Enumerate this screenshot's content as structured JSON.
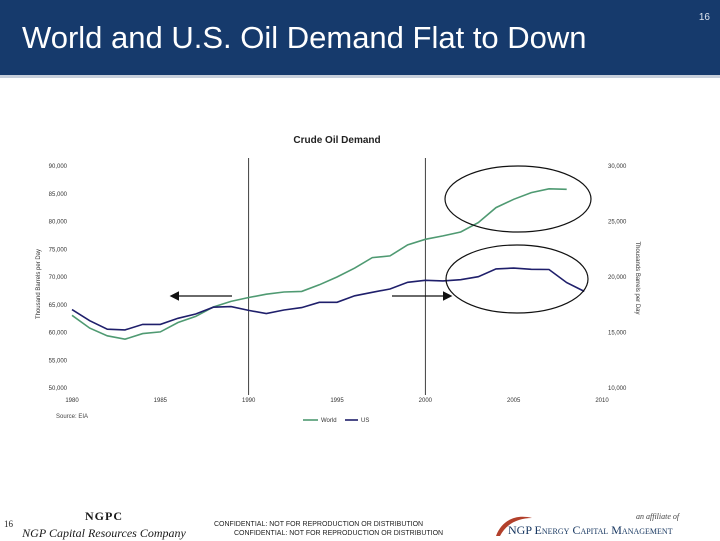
{
  "slide": {
    "title": "World and U.S. Oil Demand Flat to Down",
    "page_number_top": "16",
    "page_number_bottom": "16"
  },
  "footer": {
    "brand_line1": "NGPC",
    "brand_line2": "NGP Capital Resources Company",
    "confidential_1": "CONFIDENTIAL: NOT FOR REPRODUCTION OR DISTRIBUTION",
    "confidential_2": "CONFIDENTIAL: NOT FOR REPRODUCTION OR DISTRIBUTION",
    "affiliate": "an affiliate of",
    "logo_text": "NGP Energy Capital Management"
  },
  "colors": {
    "header": "#163a6c",
    "world": "#4f9a72",
    "us": "#1f1f6b"
  },
  "chart_data": {
    "type": "line",
    "title": "Crude Oil Demand",
    "source": "Source: EIA",
    "ylabel_left": "Thousand Barrels per Day",
    "ylabel_right": "Thousands Barrels per Day",
    "y_left_ticks": [
      "50,000",
      "55,000",
      "60,000",
      "65,000",
      "70,000",
      "75,000",
      "80,000",
      "85,000",
      "90,000"
    ],
    "y_right_ticks": [
      "10,000",
      "15,000",
      "20,000",
      "25,000",
      "30,000"
    ],
    "x_ticks": [
      "1980",
      "1985",
      "1990",
      "1995",
      "2000",
      "2005",
      "2010"
    ],
    "ylim_left": [
      50000,
      90000
    ],
    "ylim_right": [
      10000,
      30000
    ],
    "xlim": [
      1980,
      2010
    ],
    "grid": false,
    "legend_position": "bottom",
    "series": [
      {
        "name": "World",
        "axis": "left",
        "x": [
          1980,
          1981,
          1982,
          1983,
          1984,
          1985,
          1986,
          1987,
          1988,
          1989,
          1990,
          1991,
          1992,
          1993,
          1994,
          1995,
          1996,
          1997,
          1998,
          1999,
          2000,
          2001,
          2002,
          2003,
          2004,
          2005,
          2006,
          2007,
          2008
        ],
        "values": [
          63100,
          60800,
          59400,
          58800,
          59800,
          60100,
          61800,
          62900,
          64600,
          65600,
          66300,
          66900,
          67300,
          67400,
          68600,
          70000,
          71600,
          73500,
          73800,
          75800,
          76800,
          77400,
          78100,
          79800,
          82500,
          84000,
          85200,
          85900,
          85800
        ]
      },
      {
        "name": "US",
        "axis": "right",
        "x": [
          1980,
          1981,
          1982,
          1983,
          1984,
          1985,
          1986,
          1987,
          1988,
          1989,
          1990,
          1991,
          1992,
          1993,
          1994,
          1995,
          1996,
          1997,
          1998,
          1999,
          2000,
          2001,
          2002,
          2003,
          2004,
          2005,
          2006,
          2007,
          2008,
          2009
        ],
        "values": [
          17060,
          16060,
          15300,
          15230,
          15730,
          15730,
          16280,
          16670,
          17280,
          17330,
          16990,
          16710,
          17030,
          17240,
          17720,
          17720,
          18310,
          18620,
          18920,
          19520,
          19700,
          19650,
          19760,
          20030,
          20730,
          20800,
          20690,
          20680,
          19500,
          18700
        ]
      }
    ],
    "annotations": [
      {
        "type": "ellipse",
        "note": "World demand plateau"
      },
      {
        "type": "ellipse",
        "note": "U.S. demand plateau"
      },
      {
        "type": "arrow",
        "direction": "left"
      },
      {
        "type": "arrow",
        "direction": "right"
      }
    ]
  }
}
